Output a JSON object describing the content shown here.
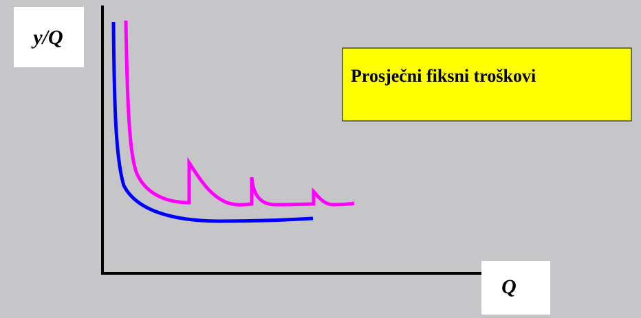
{
  "axes": {
    "y_label": "y/Q",
    "x_label": "Q"
  },
  "caption": "Prosječni fiksni troškovi"
}
